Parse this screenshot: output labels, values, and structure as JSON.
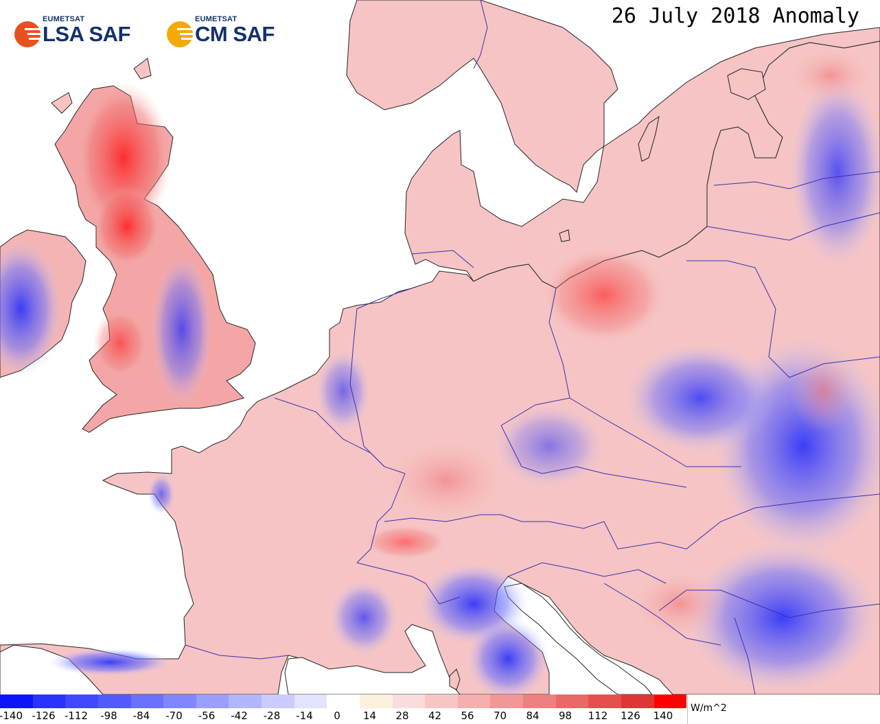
{
  "title": "26 July 2018 Anomaly",
  "logos": [
    {
      "org": "EUMETSAT",
      "name": "LSA SAF",
      "mark_color": "#e8501e",
      "icon": "lsa-saf-logo-icon"
    },
    {
      "org": "EUMETSAT",
      "name": "CM SAF",
      "mark_color": "#f2a900",
      "icon": "cm-saf-logo-icon"
    }
  ],
  "colors": {
    "land_positive": "#f7b8b8",
    "land_negative": "#9aa2f2",
    "sea": "#ffffff",
    "border": "#3a2fb0",
    "coast": "#222222"
  },
  "colorbar": {
    "unit": "W/m^2",
    "tick_labels": [
      "-140",
      "-126",
      "-112",
      "-98",
      "-84",
      "-70",
      "-56",
      "-42",
      "-28",
      "-14",
      "0",
      "14",
      "28",
      "42",
      "56",
      "70",
      "84",
      "98",
      "112",
      "126",
      "140"
    ],
    "segment_colors": [
      "#0a14ff",
      "#2a32ff",
      "#4048ff",
      "#525aff",
      "#6a70ff",
      "#8086ff",
      "#9a9eff",
      "#b2b5ff",
      "#cacbff",
      "#e2e3ff",
      "#ffffff",
      "#fdf0dc",
      "#fbdcdc",
      "#f8c5c5",
      "#f6aeae",
      "#f29797",
      "#ee8080",
      "#ea6868",
      "#e54f4f",
      "#e03535",
      "#ff0000"
    ]
  }
}
